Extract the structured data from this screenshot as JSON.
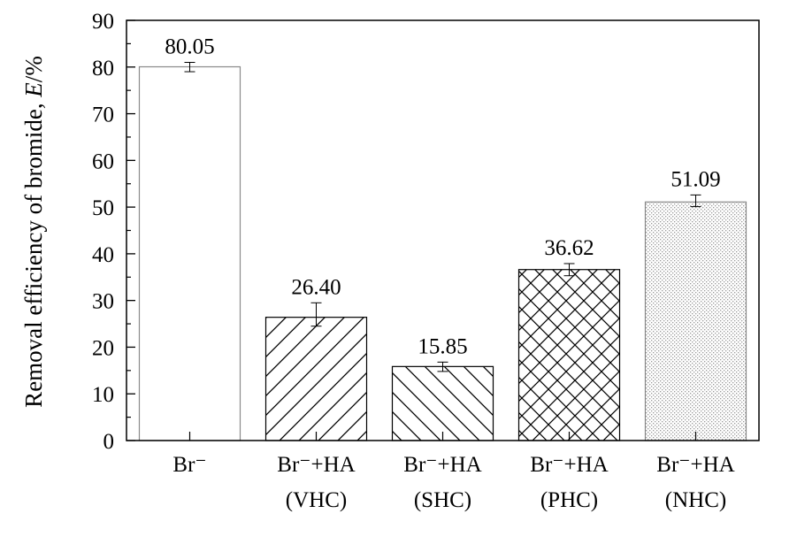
{
  "chart_data": {
    "type": "bar",
    "title": "",
    "xlabel": "",
    "ylabel": "Removal efficiency of bromide, ",
    "ylabel_var": "E",
    "ylabel_unit": "/%",
    "ylim": [
      0,
      90
    ],
    "yticks": [
      0,
      10,
      20,
      30,
      40,
      50,
      60,
      70,
      80,
      90
    ],
    "categories": [
      {
        "line1": "Br⁻",
        "line2": ""
      },
      {
        "line1": "Br⁻+HA",
        "line2": "(VHC)"
      },
      {
        "line1": "Br⁻+HA",
        "line2": "(SHC)"
      },
      {
        "line1": "Br⁻+HA",
        "line2": "(PHC)"
      },
      {
        "line1": "Br⁻+HA",
        "line2": "(NHC)"
      }
    ],
    "values": [
      80.05,
      26.4,
      15.85,
      36.62,
      51.09
    ],
    "value_labels": [
      "80.05",
      "26.40",
      "15.85",
      "36.62",
      "51.09"
    ],
    "error_low": [
      79.0,
      24.5,
      14.8,
      35.3,
      50.1
    ],
    "error_high": [
      81.0,
      29.5,
      16.8,
      37.9,
      52.6
    ],
    "patterns": [
      "none",
      "diag-forward",
      "diag-back",
      "crosshatch",
      "dots"
    ],
    "grid": false,
    "legend": "none"
  }
}
